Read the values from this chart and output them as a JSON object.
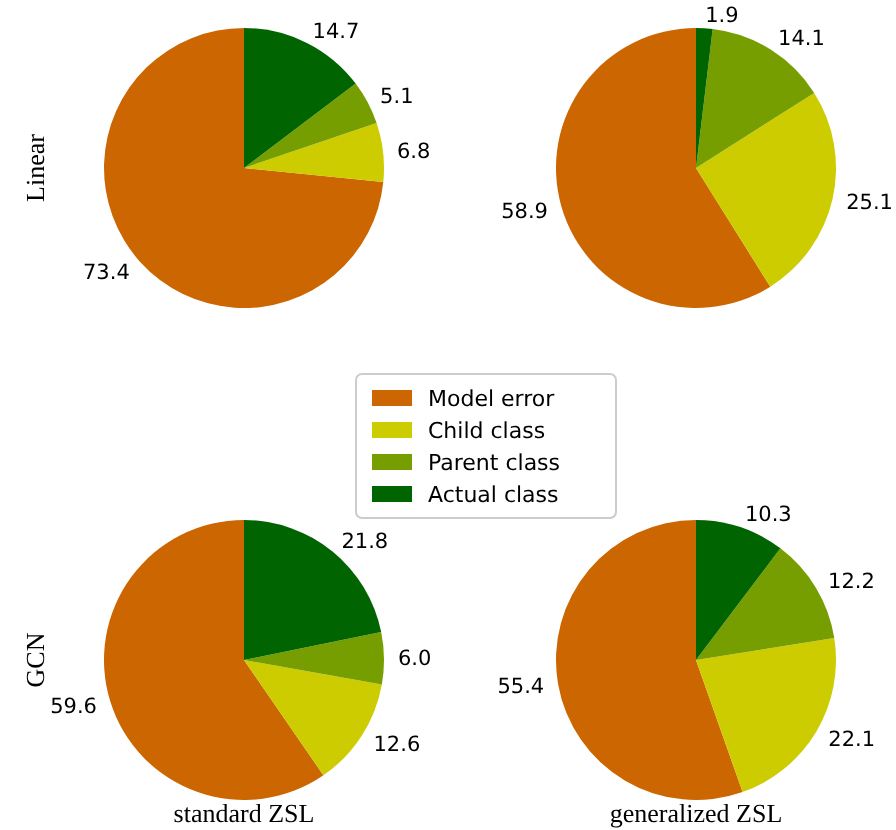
{
  "chart_data": [
    {
      "type": "pie",
      "ylabel": "Linear",
      "categories": [
        "Model error",
        "Child class",
        "Parent class",
        "Actual class"
      ],
      "colors": [
        "#cc6600",
        "#cccc00",
        "#779e00",
        "#006400"
      ],
      "values": [
        73.4,
        6.8,
        5.1,
        14.7
      ],
      "value_labels": [
        "73.4",
        "6.8",
        "5.1",
        "14.7"
      ],
      "legend": "bottom right"
    },
    {
      "type": "pie",
      "categories": [
        null,
        null,
        null,
        null
      ],
      "colors": [
        "#cc6600",
        "#cccc00",
        "#779e00",
        "#006400"
      ],
      "values": [
        58.9,
        25.1,
        14.1,
        1.9
      ],
      "value_labels": [
        "58.9",
        "25.1",
        "14.1",
        "1.9"
      ]
    },
    {
      "type": "pie",
      "ylabel": "GCN",
      "xlabel": "standard ZSL",
      "categories": [
        null,
        null,
        null,
        null
      ],
      "colors": [
        "#cc6600",
        "#cccc00",
        "#779e00",
        "#006400"
      ],
      "values": [
        59.6,
        12.6,
        6.0,
        21.8
      ],
      "value_labels": [
        "59.6",
        "12.6",
        "6.0",
        "21.8"
      ]
    },
    {
      "type": "pie",
      "xlabel": "generalized ZSL",
      "categories": [
        null,
        null,
        null,
        null
      ],
      "colors": [
        "#cc6600",
        "#cccc00",
        "#779e00",
        "#006400"
      ],
      "values": [
        55.4,
        22.1,
        12.2,
        10.3
      ],
      "value_labels": [
        "55.4",
        "22.1",
        "12.2",
        "10.3"
      ]
    }
  ]
}
